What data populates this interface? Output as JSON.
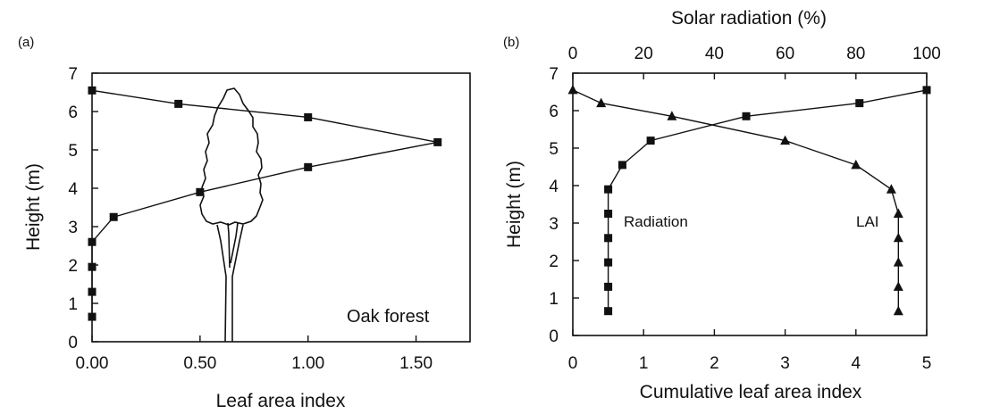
{
  "chart_data": [
    {
      "panel": "(a)",
      "type": "line",
      "xlabel": "Leaf area index",
      "ylabel": "Height (m)",
      "xlim": [
        0,
        1.75
      ],
      "ylim": [
        0,
        7
      ],
      "x_ticks": [
        "0.00",
        "0.50",
        "1.00",
        "1.50"
      ],
      "y_ticks": [
        "0",
        "1",
        "2",
        "3",
        "4",
        "5",
        "6",
        "7"
      ],
      "annotation": "Oak forest",
      "marker": "square",
      "series": [
        {
          "x": [
            0.0,
            0.0,
            0.0,
            0.0,
            0.1,
            0.5,
            1.0,
            1.6,
            1.0,
            0.4,
            0.0
          ],
          "y": [
            0.65,
            1.3,
            1.95,
            2.6,
            3.25,
            3.9,
            4.55,
            5.2,
            5.85,
            6.2,
            6.55
          ]
        }
      ]
    },
    {
      "panel": "(b)",
      "type": "line",
      "xlabel": "Cumulative leaf area index",
      "x2label": "Solar radiation (%)",
      "ylabel": "Height (m)",
      "xlim": [
        0,
        5
      ],
      "x2lim": [
        0,
        100
      ],
      "ylim": [
        0,
        7
      ],
      "x_ticks": [
        "0",
        "1",
        "2",
        "3",
        "4",
        "5"
      ],
      "x2_ticks": [
        "0",
        "20",
        "40",
        "60",
        "80",
        "100"
      ],
      "y_ticks": [
        "0",
        "1",
        "2",
        "3",
        "4",
        "5",
        "6",
        "7"
      ],
      "series": [
        {
          "name": "Radiation",
          "axis": "top",
          "marker": "square",
          "x": [
            10,
            10,
            10,
            10,
            10,
            10,
            14,
            22,
            49,
            81,
            100
          ],
          "y": [
            0.65,
            1.3,
            1.95,
            2.6,
            3.25,
            3.9,
            4.55,
            5.2,
            5.85,
            6.2,
            6.55
          ]
        },
        {
          "name": "LAI",
          "axis": "bottom",
          "marker": "triangle",
          "x": [
            4.6,
            4.6,
            4.6,
            4.6,
            4.6,
            4.5,
            4.0,
            3.0,
            1.4,
            0.4,
            0.0
          ],
          "y": [
            0.65,
            1.3,
            1.95,
            2.6,
            3.25,
            3.9,
            4.55,
            5.2,
            5.85,
            6.2,
            6.55
          ]
        }
      ]
    }
  ]
}
